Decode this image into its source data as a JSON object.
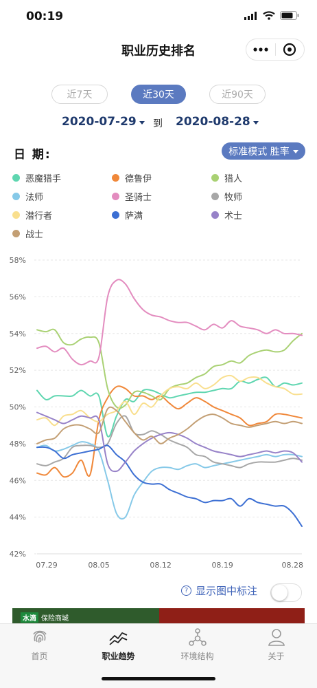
{
  "status": {
    "time": "00:19"
  },
  "nav": {
    "title": "职业历史排名"
  },
  "range_tabs": [
    {
      "label": "近7天",
      "active": false
    },
    {
      "label": "近30天",
      "active": true
    },
    {
      "label": "近90天",
      "active": false
    }
  ],
  "date_range": {
    "start": "2020-07-29",
    "to_label": "到",
    "end": "2020-08-28"
  },
  "date_title": "日 期:",
  "mode_button": {
    "label": "标准模式 胜率"
  },
  "annotation_toggle": {
    "label": "显示图中标注",
    "on": false
  },
  "ad": {
    "brand": "水滴",
    "text": "保险商城"
  },
  "tabbar": [
    {
      "label": "首页",
      "icon": "fingerprint-icon",
      "active": false
    },
    {
      "label": "职业趋势",
      "icon": "trend-icon",
      "active": true
    },
    {
      "label": "环境结构",
      "icon": "network-icon",
      "active": false
    },
    {
      "label": "关于",
      "icon": "person-icon",
      "active": false
    }
  ],
  "chart_data": {
    "type": "line",
    "title": "",
    "xlabel": "",
    "ylabel": "",
    "ylim": [
      42,
      58
    ],
    "y_ticks": [
      "42%",
      "44%",
      "46%",
      "48%",
      "50%",
      "52%",
      "54%",
      "56%",
      "58%"
    ],
    "x_tick_labels": [
      "07.29",
      "08.05",
      "08.12",
      "08.19",
      "08.28"
    ],
    "x_tick_days": [
      0,
      7,
      14,
      21,
      30
    ],
    "x_days": [
      0,
      1,
      2,
      3,
      4,
      5,
      6,
      7,
      8,
      9,
      10,
      11,
      12,
      13,
      14,
      15,
      16,
      17,
      18,
      19,
      20,
      21,
      22,
      23,
      24,
      25,
      26,
      27,
      28,
      29,
      30
    ],
    "legend_position": "top",
    "grid": true,
    "series": [
      {
        "name": "恶魔猎手",
        "color": "#5fd6b0",
        "values": [
          50.9,
          50.4,
          50.6,
          50.6,
          50.6,
          50.9,
          50.6,
          50.6,
          48.4,
          49.5,
          50.4,
          50.3,
          50.9,
          50.9,
          50.7,
          50.5,
          50.6,
          50.7,
          50.8,
          50.8,
          50.9,
          51.0,
          51.0,
          51.4,
          51.3,
          51.5,
          51.6,
          51.1,
          51.3,
          51.2,
          51.3
        ]
      },
      {
        "name": "德鲁伊",
        "color": "#f0883a",
        "values": [
          46.4,
          46.3,
          46.7,
          46.2,
          46.4,
          47.1,
          46.3,
          49.3,
          50.5,
          51.1,
          51.0,
          50.6,
          50.6,
          50.4,
          50.6,
          50.2,
          49.9,
          50.2,
          50.5,
          50.3,
          50.0,
          49.8,
          49.6,
          49.4,
          49.0,
          49.1,
          49.2,
          49.6,
          49.6,
          49.5,
          49.4
        ]
      },
      {
        "name": "猎人",
        "color": "#a9d173",
        "values": [
          54.2,
          54.1,
          54.2,
          53.5,
          53.4,
          53.7,
          53.8,
          53.5,
          51.0,
          50.0,
          50.1,
          50.8,
          50.8,
          50.6,
          50.4,
          51.0,
          51.2,
          51.3,
          51.6,
          51.8,
          52.2,
          52.3,
          52.5,
          52.4,
          52.8,
          53.0,
          53.1,
          53.0,
          53.1,
          53.6,
          54.0
        ]
      },
      {
        "name": "法师",
        "color": "#86c9e8",
        "values": [
          47.8,
          47.9,
          47.6,
          47.7,
          47.9,
          48.1,
          48.0,
          47.6,
          46.0,
          44.2,
          44.0,
          45.2,
          45.9,
          46.5,
          46.7,
          46.7,
          46.6,
          46.8,
          46.9,
          46.7,
          46.8,
          46.9,
          47.0,
          47.1,
          47.2,
          47.3,
          47.4,
          47.3,
          47.4,
          47.4,
          47.3
        ]
      },
      {
        "name": "圣骑士",
        "color": "#e38cbf",
        "values": [
          53.2,
          53.3,
          53.0,
          53.2,
          52.6,
          52.3,
          52.5,
          52.7,
          56.0,
          56.9,
          56.7,
          55.9,
          55.3,
          55.0,
          54.9,
          54.7,
          54.6,
          54.6,
          54.4,
          54.2,
          54.5,
          54.3,
          54.7,
          54.4,
          54.3,
          54.2,
          54.0,
          54.2,
          54.0,
          54.0,
          53.9
        ]
      },
      {
        "name": "牧师",
        "color": "#a7a7a7",
        "values": [
          46.9,
          46.8,
          47.0,
          47.2,
          47.8,
          47.9,
          47.9,
          47.8,
          48.0,
          49.1,
          49.5,
          48.6,
          48.5,
          48.7,
          48.5,
          48.2,
          48.0,
          47.8,
          47.4,
          47.3,
          47.0,
          46.9,
          46.8,
          46.7,
          46.9,
          47.0,
          47.0,
          47.0,
          47.1,
          47.2,
          47.1
        ]
      },
      {
        "name": "潜行者",
        "color": "#f9df8e",
        "values": [
          49.3,
          49.4,
          49.0,
          49.5,
          49.6,
          49.8,
          49.4,
          49.2,
          49.6,
          49.8,
          50.3,
          49.6,
          50.2,
          50.0,
          50.6,
          51.0,
          51.1,
          51.0,
          51.3,
          51.0,
          51.2,
          51.6,
          51.7,
          51.4,
          51.6,
          51.6,
          51.3,
          51.1,
          51.0,
          50.7,
          50.7
        ]
      },
      {
        "name": "萨满",
        "color": "#3c6fd3",
        "values": [
          47.8,
          47.8,
          47.6,
          47.2,
          47.4,
          47.5,
          47.6,
          47.7,
          47.9,
          47.4,
          47.0,
          46.3,
          45.9,
          45.8,
          45.8,
          45.5,
          45.3,
          45.1,
          45.0,
          44.8,
          44.9,
          44.9,
          45.0,
          44.6,
          45.0,
          44.8,
          44.7,
          44.6,
          44.6,
          44.2,
          43.5
        ]
      },
      {
        "name": "术士",
        "color": "#9782c8",
        "values": [
          49.7,
          49.5,
          49.3,
          49.1,
          49.3,
          49.5,
          49.4,
          49.3,
          46.9,
          46.5,
          47.0,
          47.6,
          48.0,
          48.3,
          48.5,
          48.6,
          48.5,
          48.3,
          48.0,
          47.8,
          47.6,
          47.5,
          47.4,
          47.3,
          47.4,
          47.5,
          47.6,
          47.5,
          47.6,
          47.5,
          47.0
        ]
      },
      {
        "name": "战士",
        "color": "#c39f74",
        "values": [
          48.0,
          48.2,
          48.3,
          48.8,
          49.0,
          49.0,
          48.8,
          48.6,
          49.9,
          49.8,
          49.2,
          48.6,
          48.2,
          48.4,
          48.0,
          48.3,
          48.5,
          48.8,
          49.2,
          49.5,
          49.6,
          49.4,
          49.1,
          49.0,
          48.9,
          49.0,
          49.1,
          49.2,
          49.1,
          49.2,
          49.1
        ]
      }
    ]
  }
}
